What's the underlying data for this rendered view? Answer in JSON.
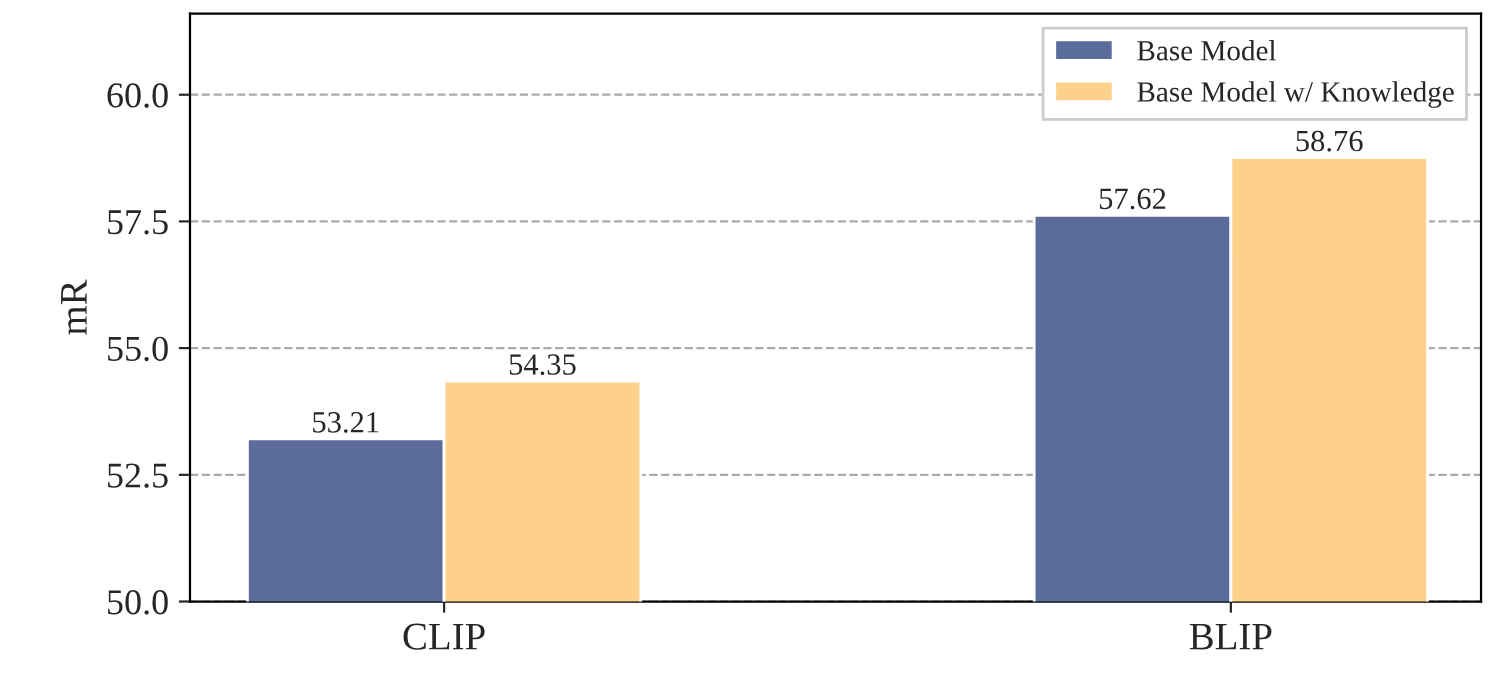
{
  "chart_data": {
    "type": "bar",
    "ylabel": "mR",
    "categories": [
      "CLIP",
      "BLIP"
    ],
    "series": [
      {
        "name": "Base Model",
        "color": "#5a6b9c",
        "values": [
          53.21,
          57.62
        ]
      },
      {
        "name": "Base Model w/ Knowledge",
        "color": "#fdd08c",
        "values": [
          54.35,
          58.76
        ]
      }
    ],
    "ylim": [
      50,
      61.6
    ],
    "yticks": [
      {
        "value": 50,
        "label": "50.0"
      },
      {
        "value": 52.5,
        "label": "52.5"
      },
      {
        "value": 55,
        "label": "55.0"
      },
      {
        "value": 57.5,
        "label": "57.5"
      },
      {
        "value": 60,
        "label": "60.0"
      }
    ],
    "grid": "y",
    "legend": "top right",
    "data_labels": true
  }
}
